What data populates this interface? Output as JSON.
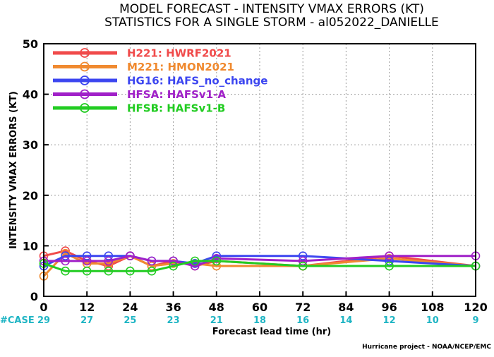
{
  "title_line1": "MODEL FORECAST - INTENSITY VMAX ERRORS (KT)",
  "title_line2": "STATISTICS FOR A SINGLE STORM - al052022_DANIELLE",
  "credit": "Hurricane project - NOAA/NCEP/EMC",
  "case_label": "#CASE",
  "case_color": "#1fb5c4",
  "cases": [
    {
      "x": 0,
      "n": "29"
    },
    {
      "x": 12,
      "n": "27"
    },
    {
      "x": 24,
      "n": "25"
    },
    {
      "x": 36,
      "n": "23"
    },
    {
      "x": 48,
      "n": "21"
    },
    {
      "x": 60,
      "n": "18"
    },
    {
      "x": 72,
      "n": "16"
    },
    {
      "x": 84,
      "n": "14"
    },
    {
      "x": 96,
      "n": "12"
    },
    {
      "x": 108,
      "n": "10"
    },
    {
      "x": 120,
      "n": "9"
    }
  ],
  "chart_data": {
    "type": "line",
    "title": "MODEL FORECAST - INTENSITY VMAX ERRORS (KT)",
    "subtitle": "STATISTICS FOR A SINGLE STORM - al052022_DANIELLE",
    "xlabel": "Forecast lead time (hr)",
    "ylabel": "INTENSITY VMAX ERRORS (KT)",
    "xlim": [
      0,
      120
    ],
    "ylim": [
      0,
      50
    ],
    "xticks": [
      0,
      12,
      24,
      36,
      48,
      60,
      72,
      84,
      96,
      108,
      120
    ],
    "yticks": [
      0,
      10,
      20,
      30,
      40,
      50
    ],
    "grid": true,
    "legend_position": "top-left",
    "series": [
      {
        "name": "H221:  HWRF2021",
        "color": "#f04a4a",
        "x": [
          0,
          6,
          12,
          18,
          24,
          30,
          36,
          42,
          48,
          72,
          96,
          120
        ],
        "y": [
          8,
          9,
          7,
          6,
          8,
          6,
          7,
          6,
          7,
          6,
          8,
          6
        ]
      },
      {
        "name": "M221:  HMON2021",
        "color": "#f08a30",
        "x": [
          0,
          6,
          12,
          18,
          24,
          30,
          36,
          42,
          48,
          72,
          96,
          120
        ],
        "y": [
          4,
          8.5,
          6.5,
          6.5,
          8,
          6,
          6.5,
          6.5,
          6,
          6,
          7.5,
          6
        ]
      },
      {
        "name": "HG16:  HAFS_no_change",
        "color": "#3c46f0",
        "x": [
          0,
          6,
          12,
          18,
          24,
          30,
          36,
          42,
          48,
          72,
          96,
          120
        ],
        "y": [
          6,
          8,
          8,
          8,
          8,
          7,
          7,
          6.5,
          8,
          8,
          7,
          6
        ]
      },
      {
        "name": "HFSA:  HAFSv1-A",
        "color": "#a020c8",
        "x": [
          0,
          6,
          12,
          18,
          24,
          30,
          36,
          42,
          48,
          72,
          96,
          120
        ],
        "y": [
          7,
          7,
          7,
          7,
          8,
          7,
          7,
          6,
          7.5,
          7,
          8,
          8
        ]
      },
      {
        "name": "HFSB:  HAFSv1-B",
        "color": "#22cc22",
        "x": [
          0,
          6,
          12,
          18,
          24,
          30,
          36,
          42,
          48,
          72,
          96,
          120
        ],
        "y": [
          6.5,
          5,
          5,
          5,
          5,
          5,
          6,
          7,
          7,
          6,
          6,
          6
        ]
      }
    ]
  }
}
